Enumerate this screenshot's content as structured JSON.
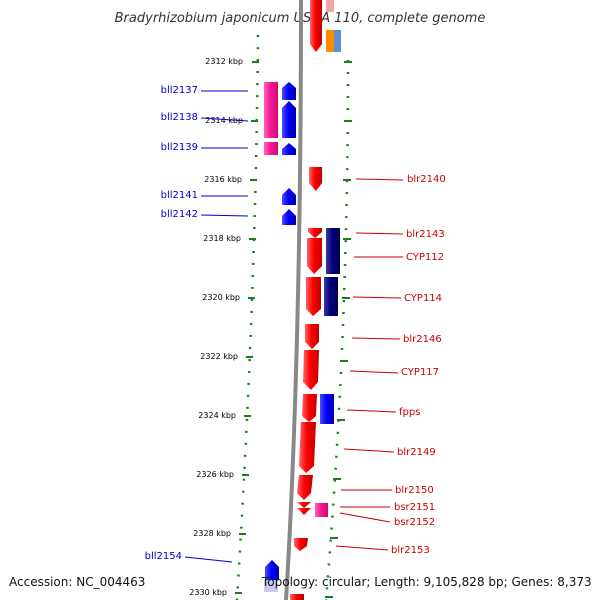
{
  "title": "Bradyrhizobium japonicum USDA 110, complete genome",
  "accession": "Accession: NC_004463",
  "topology": "Topology: circular; Length: 9,105,828 bp; Genes: 8,373",
  "colors": {
    "backbone": "#888888",
    "tick_marks": "#1a7f1a",
    "forward_label": "#cc0000",
    "reverse_label": "#0000cc",
    "forward_gene": "#ff0000",
    "reverse_gene": "#0000ff",
    "magenta_gene": "#ff1493",
    "navy_gene": "#000080"
  },
  "kbp_marks": [
    "2312 kbp",
    "2314 kbp",
    "2316 kbp",
    "2318 kbp",
    "2320 kbp",
    "2322 kbp",
    "2324 kbp",
    "2326 kbp",
    "2328 kbp",
    "2330 kbp"
  ],
  "genes_reverse": [
    {
      "name": "bll2137"
    },
    {
      "name": "bll2138"
    },
    {
      "name": "bll2139"
    },
    {
      "name": "bll2141"
    },
    {
      "name": "bll2142"
    },
    {
      "name": "bll2154"
    }
  ],
  "genes_forward": [
    {
      "name": "blr2140"
    },
    {
      "name": "blr2143"
    },
    {
      "name": "CYP112"
    },
    {
      "name": "CYP114"
    },
    {
      "name": "blr2146"
    },
    {
      "name": "CYP117"
    },
    {
      "name": "fpps"
    },
    {
      "name": "blr2149"
    },
    {
      "name": "blr2150"
    },
    {
      "name": "bsr2151"
    },
    {
      "name": "bsr2152"
    },
    {
      "name": "blr2153"
    }
  ]
}
